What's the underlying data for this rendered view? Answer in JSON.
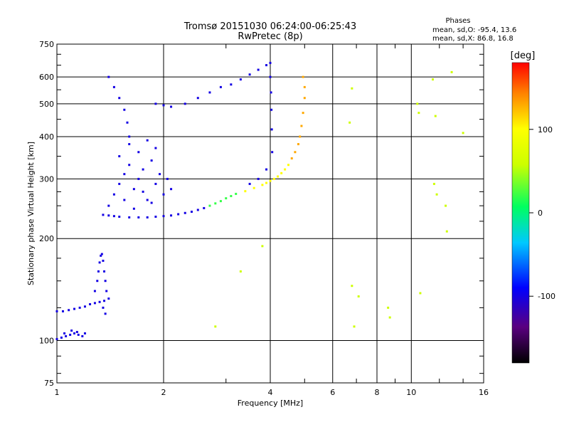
{
  "chart_data": {
    "type": "scatter",
    "title_line1": "Tromsø 20151030 06:24:00-06:25:43",
    "title_line2": "RwPretec (8p)",
    "xlabel": "Frequency [MHz]",
    "ylabel": "Stationary phase Virtual Height [km]",
    "x_scale": "log",
    "y_scale": "log",
    "xlim": [
      1,
      16
    ],
    "ylim": [
      75,
      750
    ],
    "x_ticks": [
      1,
      2,
      4,
      6,
      8,
      10,
      16
    ],
    "x_tick_labels": [
      "1",
      "2",
      "4",
      "6",
      "8",
      "10",
      "16"
    ],
    "y_ticks": [
      75,
      100,
      200,
      300,
      400,
      500,
      600,
      750
    ],
    "y_tick_labels": [
      "75",
      "100",
      "200",
      "300",
      "400",
      "500",
      "600",
      "750"
    ],
    "grid": true,
    "stats": {
      "heading": "Phases",
      "line1": "mean, sd,O: -95.4, 13.6",
      "line2": "mean, sd,X:  86.8, 16.8"
    },
    "colorbar": {
      "label": "[deg]",
      "range": [
        -180,
        180
      ],
      "ticks": [
        100,
        0,
        -100
      ],
      "tick_labels": [
        "100",
        "0",
        "-100"
      ]
    },
    "series": [
      {
        "trace": "low E / Es trace",
        "points": [
          [
            1.0,
            101
          ],
          [
            1.03,
            102
          ],
          [
            1.06,
            103
          ],
          [
            1.09,
            104
          ],
          [
            1.12,
            105
          ],
          [
            1.15,
            104
          ],
          [
            1.18,
            103
          ],
          [
            1.2,
            105
          ],
          [
            1.05,
            105
          ],
          [
            1.1,
            107
          ],
          [
            1.14,
            106
          ],
          [
            1.0,
            122
          ],
          [
            1.04,
            122
          ],
          [
            1.08,
            123
          ],
          [
            1.12,
            124
          ],
          [
            1.16,
            125
          ],
          [
            1.2,
            126
          ],
          [
            1.24,
            128
          ],
          [
            1.28,
            129
          ],
          [
            1.32,
            130
          ],
          [
            1.36,
            131
          ],
          [
            1.4,
            133
          ],
          [
            1.28,
            140
          ],
          [
            1.3,
            150
          ],
          [
            1.31,
            160
          ],
          [
            1.32,
            170
          ],
          [
            1.33,
            178
          ],
          [
            1.34,
            180
          ],
          [
            1.35,
            172
          ],
          [
            1.36,
            160
          ],
          [
            1.37,
            150
          ],
          [
            1.38,
            140
          ],
          [
            1.35,
            125
          ],
          [
            1.37,
            120
          ]
        ],
        "phase": -100
      },
      {
        "trace": "F1 / F2 O-mode lower trace",
        "points": [
          [
            1.35,
            235
          ],
          [
            1.4,
            234
          ],
          [
            1.45,
            233
          ],
          [
            1.5,
            232
          ],
          [
            1.6,
            231
          ],
          [
            1.7,
            231
          ],
          [
            1.8,
            231
          ],
          [
            1.9,
            232
          ],
          [
            2.0,
            233
          ],
          [
            2.1,
            234
          ],
          [
            2.2,
            236
          ],
          [
            2.3,
            238
          ],
          [
            2.4,
            240
          ],
          [
            2.5,
            243
          ],
          [
            2.6,
            246
          ],
          [
            2.7,
            250
          ],
          [
            2.8,
            254
          ],
          [
            2.9,
            258
          ],
          [
            3.0,
            263
          ],
          [
            3.1,
            267
          ],
          [
            3.2,
            271
          ],
          [
            3.4,
            276
          ],
          [
            3.6,
            282
          ],
          [
            3.8,
            288
          ],
          [
            3.9,
            292
          ],
          [
            4.0,
            296
          ],
          [
            4.1,
            300
          ],
          [
            4.2,
            305
          ],
          [
            4.3,
            312
          ],
          [
            4.4,
            320
          ],
          [
            4.5,
            330
          ],
          [
            4.6,
            345
          ],
          [
            4.7,
            360
          ],
          [
            4.8,
            380
          ],
          [
            4.85,
            400
          ],
          [
            4.9,
            430
          ],
          [
            4.95,
            470
          ],
          [
            5.0,
            520
          ],
          [
            5.0,
            560
          ],
          [
            4.95,
            600
          ]
        ],
        "phase": 120
      },
      {
        "trace": "scattered F-region echoes",
        "points": [
          [
            1.4,
            250
          ],
          [
            1.45,
            270
          ],
          [
            1.5,
            290
          ],
          [
            1.55,
            310
          ],
          [
            1.6,
            330
          ],
          [
            1.65,
            280
          ],
          [
            1.7,
            300
          ],
          [
            1.75,
            320
          ],
          [
            1.8,
            260
          ],
          [
            1.85,
            340
          ],
          [
            1.9,
            290
          ],
          [
            1.95,
            310
          ],
          [
            2.0,
            270
          ],
          [
            1.5,
            350
          ],
          [
            1.6,
            380
          ],
          [
            1.7,
            360
          ],
          [
            1.8,
            390
          ],
          [
            1.9,
            370
          ],
          [
            1.55,
            260
          ],
          [
            1.65,
            245
          ],
          [
            1.75,
            275
          ],
          [
            1.85,
            255
          ],
          [
            2.05,
            300
          ],
          [
            2.1,
            280
          ]
        ],
        "phase": -100
      },
      {
        "trace": "high F2 trace",
        "points": [
          [
            1.4,
            600
          ],
          [
            1.45,
            560
          ],
          [
            1.5,
            520
          ],
          [
            1.55,
            480
          ],
          [
            1.58,
            440
          ],
          [
            1.6,
            400
          ],
          [
            1.9,
            500
          ],
          [
            2.0,
            495
          ],
          [
            2.1,
            490
          ],
          [
            2.3,
            500
          ],
          [
            2.5,
            520
          ],
          [
            2.7,
            540
          ],
          [
            2.9,
            560
          ],
          [
            3.1,
            570
          ],
          [
            3.3,
            590
          ],
          [
            3.5,
            610
          ],
          [
            3.7,
            630
          ],
          [
            3.9,
            650
          ],
          [
            4.0,
            660
          ],
          [
            4.0,
            600
          ],
          [
            4.02,
            540
          ],
          [
            4.03,
            480
          ],
          [
            4.04,
            420
          ],
          [
            4.05,
            360
          ],
          [
            3.9,
            320
          ],
          [
            3.7,
            300
          ],
          [
            3.5,
            290
          ]
        ],
        "phase": -100
      },
      {
        "trace": "sparse high-frequency points",
        "points": [
          [
            6.8,
            555
          ],
          [
            6.7,
            440
          ],
          [
            6.8,
            145
          ],
          [
            6.9,
            110
          ],
          [
            7.1,
            135
          ],
          [
            8.6,
            125
          ],
          [
            8.7,
            117
          ],
          [
            10.4,
            500
          ],
          [
            10.5,
            470
          ],
          [
            10.6,
            138
          ],
          [
            11.5,
            590
          ],
          [
            11.7,
            460
          ],
          [
            11.6,
            290
          ],
          [
            11.8,
            270
          ],
          [
            13.0,
            620
          ],
          [
            12.5,
            250
          ],
          [
            12.6,
            210
          ],
          [
            14.0,
            410
          ],
          [
            2.8,
            110
          ],
          [
            3.3,
            160
          ],
          [
            3.8,
            190
          ]
        ],
        "phase": 60
      }
    ]
  }
}
